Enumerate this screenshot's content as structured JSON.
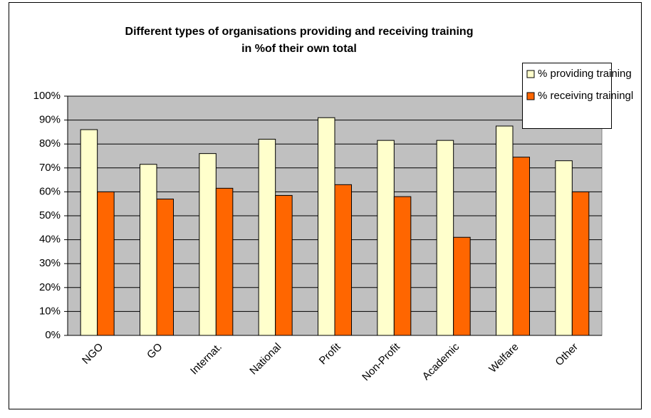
{
  "chart_data": {
    "type": "bar",
    "title": "Different types of organisations providing and receiving training",
    "subtitle": "in %of their own total",
    "categories": [
      "NGO",
      "GO",
      "Internat.",
      "National",
      "Profit",
      "Non-Profit",
      "Academic",
      "Welfare",
      "Other"
    ],
    "series": [
      {
        "name": "% providing training",
        "color": "#ffffcc",
        "values": [
          86,
          71.5,
          76,
          82,
          91,
          81.5,
          81.5,
          87.5,
          73
        ]
      },
      {
        "name": "% receiving trainingl",
        "color": "#ff6600",
        "values": [
          60,
          57,
          61.5,
          58.5,
          63,
          58,
          41,
          74.5,
          60
        ]
      }
    ],
    "ylim": [
      0,
      100
    ],
    "yticks": [
      {
        "value": 0,
        "label": "0%"
      },
      {
        "value": 10,
        "label": "10%"
      },
      {
        "value": 20,
        "label": "20%"
      },
      {
        "value": 30,
        "label": "30%"
      },
      {
        "value": 40,
        "label": "40%"
      },
      {
        "value": 50,
        "label": "50%"
      },
      {
        "value": 60,
        "label": "60%"
      },
      {
        "value": 70,
        "label": "70%"
      },
      {
        "value": 80,
        "label": "80%"
      },
      {
        "value": 90,
        "label": "90%"
      },
      {
        "value": 100,
        "label": "100%"
      }
    ],
    "grid": true,
    "legend": "top-right"
  }
}
